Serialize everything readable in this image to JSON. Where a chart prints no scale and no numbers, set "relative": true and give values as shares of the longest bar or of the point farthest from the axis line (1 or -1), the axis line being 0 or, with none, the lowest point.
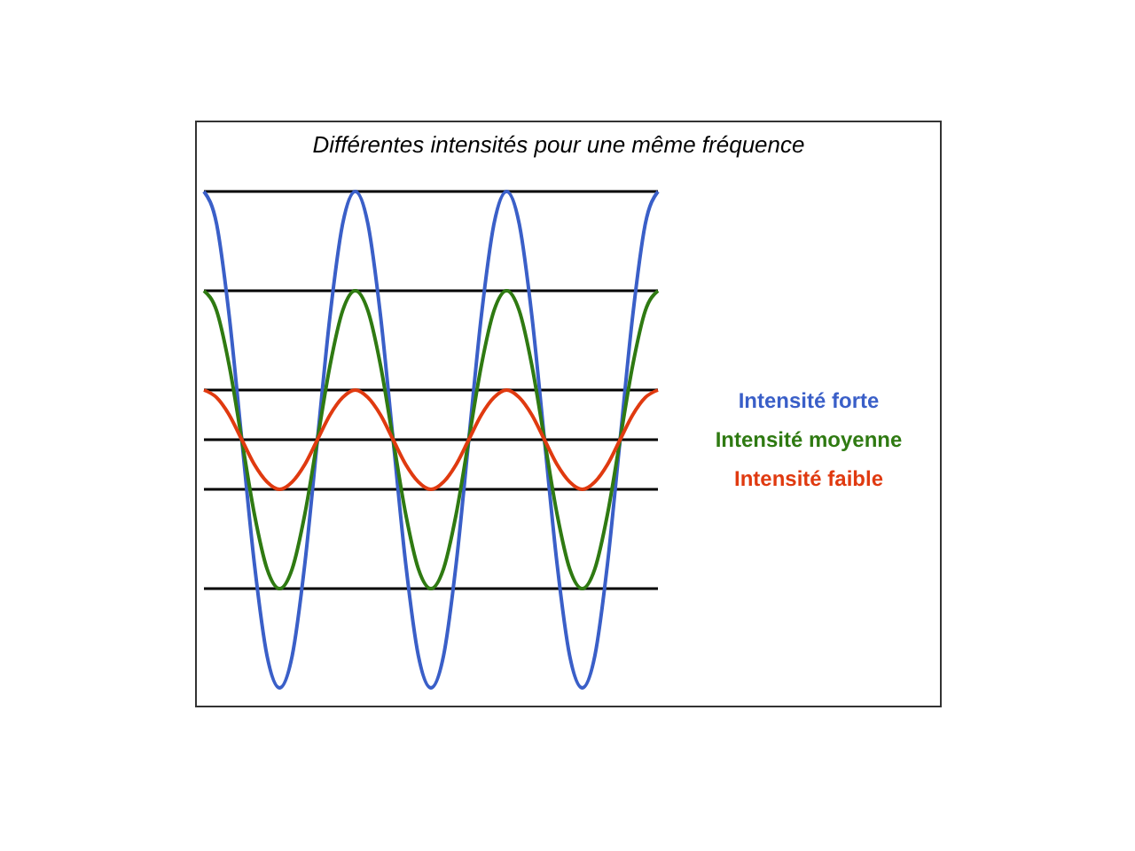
{
  "chart_data": {
    "type": "line",
    "title": "Différentes intensités pour une même fréquence",
    "relative": true,
    "legend": "right",
    "marker": "none",
    "line_style": "solid",
    "categories": [
      null,
      null,
      null,
      null,
      null,
      null,
      null,
      null,
      null,
      null,
      null,
      null,
      null,
      null,
      null,
      null,
      null,
      null,
      null,
      null,
      null,
      null,
      null,
      null,
      null,
      null,
      null,
      null,
      null,
      null,
      null,
      null,
      null,
      null,
      null,
      null,
      null
    ],
    "series": [
      {
        "name": "Intensité forte",
        "color": "#3a5fc8",
        "values": [
          1,
          0.87,
          0.5,
          0,
          -0.5,
          -0.87,
          -1,
          -0.87,
          -0.5,
          0,
          0.5,
          0.87,
          1,
          0.87,
          0.5,
          0,
          -0.5,
          -0.87,
          -1,
          -0.87,
          -0.5,
          0,
          0.5,
          0.87,
          1,
          0.87,
          0.5,
          0,
          -0.5,
          -0.87,
          -1,
          -0.87,
          -0.5,
          0,
          0.5,
          0.87,
          1
        ]
      },
      {
        "name": "Intensité moyenne",
        "color": "#2f7a12",
        "values": [
          0.6,
          0.52,
          0.3,
          0,
          -0.3,
          -0.52,
          -0.6,
          -0.52,
          -0.3,
          0,
          0.3,
          0.52,
          0.6,
          0.52,
          0.3,
          0,
          -0.3,
          -0.52,
          -0.6,
          -0.52,
          -0.3,
          0,
          0.3,
          0.52,
          0.6,
          0.52,
          0.3,
          0,
          -0.3,
          -0.52,
          -0.6,
          -0.52,
          -0.3,
          0,
          0.3,
          0.52,
          0.6
        ]
      },
      {
        "name": "Intensité faible",
        "color": "#e03a10",
        "values": [
          0.2,
          0.17,
          0.1,
          0,
          -0.1,
          -0.17,
          -0.2,
          -0.17,
          -0.1,
          0,
          0.1,
          0.17,
          0.2,
          0.17,
          0.1,
          0,
          -0.1,
          -0.17,
          -0.2,
          -0.17,
          -0.1,
          0,
          0.1,
          0.17,
          0.2,
          0.17,
          0.1,
          0,
          -0.1,
          -0.17,
          -0.2,
          -0.17,
          -0.1,
          0,
          0.1,
          0.17,
          0.2
        ]
      }
    ],
    "ref_lines": [
      {
        "axis": "y",
        "value": 1,
        "color": "#000000",
        "line_style": "solid"
      },
      {
        "axis": "y",
        "value": 0.6,
        "color": "#000000",
        "line_style": "solid"
      },
      {
        "axis": "y",
        "value": 0.2,
        "color": "#000000",
        "line_style": "solid"
      },
      {
        "axis": "y",
        "value": 0,
        "color": "#000000",
        "line_style": "solid"
      },
      {
        "axis": "y",
        "value": -0.2,
        "color": "#000000",
        "line_style": "solid"
      },
      {
        "axis": "y",
        "value": -0.6,
        "color": "#000000",
        "line_style": "solid"
      }
    ]
  }
}
